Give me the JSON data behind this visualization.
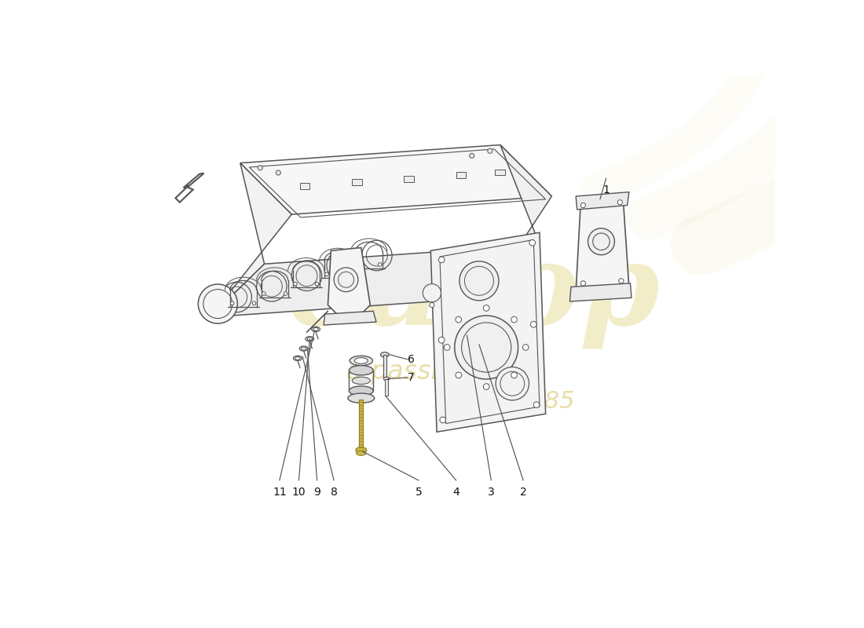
{
  "bg_color": "#ffffff",
  "line_color": "#555555",
  "label_color": "#111111",
  "fig_width": 11.0,
  "fig_height": 8.0,
  "dpi": 100,
  "watermark": {
    "color1": "#d4c060",
    "color2": "#c8b030",
    "alpha1": 0.38,
    "alpha2": 0.45
  },
  "bolt_color": "#c8b84a",
  "bolt_edge_color": "#9a8020",
  "part_numbers": [
    "1",
    "2",
    "3",
    "4",
    "5",
    "6",
    "7",
    "8",
    "9",
    "10",
    "11"
  ]
}
